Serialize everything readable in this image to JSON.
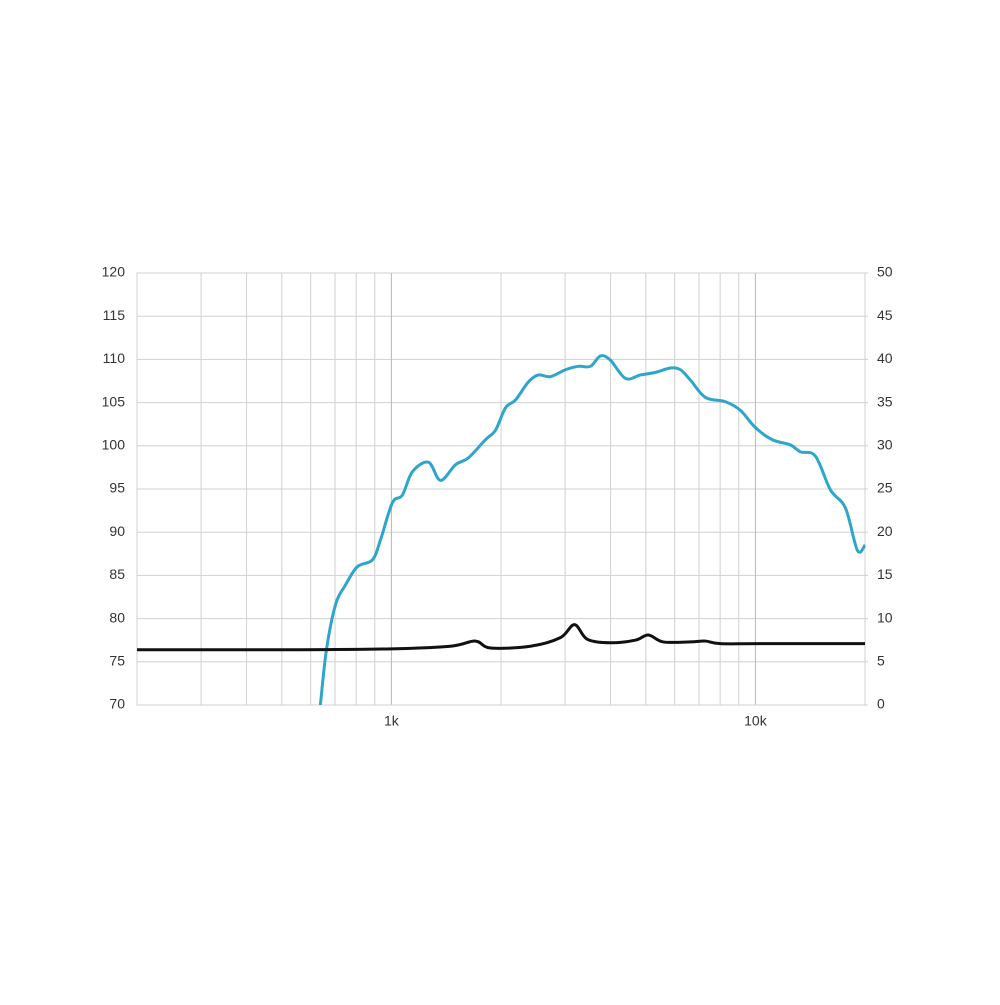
{
  "chart_data": {
    "type": "line",
    "xscale": "log",
    "grid": true,
    "xlim": [
      200,
      20000
    ],
    "xticks": [
      {
        "value": 1000,
        "label": "1k"
      },
      {
        "value": 10000,
        "label": "10k"
      }
    ],
    "ylim": [
      70,
      120
    ],
    "yticks": [
      70,
      75,
      80,
      85,
      90,
      95,
      100,
      105,
      110,
      115,
      120
    ],
    "y2lim": [
      0,
      50
    ],
    "y2ticks": [
      0,
      5,
      10,
      15,
      20,
      25,
      30,
      35,
      40,
      45,
      50
    ],
    "series": [
      {
        "color": "#2ea6cc",
        "x": [
          638,
          663,
          702,
          748,
          806,
          887,
          933,
          1006,
          1072,
          1142,
          1264,
          1364,
          1499,
          1627,
          1812,
          1931,
          2058,
          2192,
          2379,
          2534,
          2734,
          3006,
          3265,
          3522,
          3752,
          3997,
          4396,
          4832,
          5313,
          5843,
          6223,
          6629,
          7290,
          8273,
          9095,
          10000,
          11135,
          12484,
          13294,
          14619,
          16069,
          17672,
          19060,
          20000
        ],
        "values": [
          70.0,
          76.4,
          81.6,
          83.9,
          86.0,
          86.8,
          89.1,
          93.4,
          94.3,
          97.0,
          98.1,
          96.0,
          97.8,
          98.6,
          100.7,
          101.8,
          104.4,
          105.3,
          107.4,
          108.2,
          108.0,
          108.8,
          109.2,
          109.2,
          110.4,
          109.9,
          107.8,
          108.2,
          108.5,
          109.0,
          108.8,
          107.6,
          105.6,
          105.1,
          104.1,
          102.1,
          100.7,
          100.1,
          99.3,
          98.8,
          94.9,
          92.8,
          87.9,
          88.5
        ]
      },
      {
        "color": "#111111",
        "axis": "y2",
        "x": [
          200,
          562,
          1000,
          1452,
          1701,
          1870,
          2407,
          2912,
          3184,
          3454,
          3997,
          4675,
          5082,
          5580,
          6629,
          7290,
          8000,
          10320,
          20000
        ],
        "values": [
          6.4,
          6.4,
          6.5,
          6.8,
          7.4,
          6.6,
          6.8,
          7.8,
          9.3,
          7.6,
          7.2,
          7.5,
          8.1,
          7.3,
          7.3,
          7.4,
          7.1,
          7.1,
          7.1
        ]
      }
    ]
  }
}
